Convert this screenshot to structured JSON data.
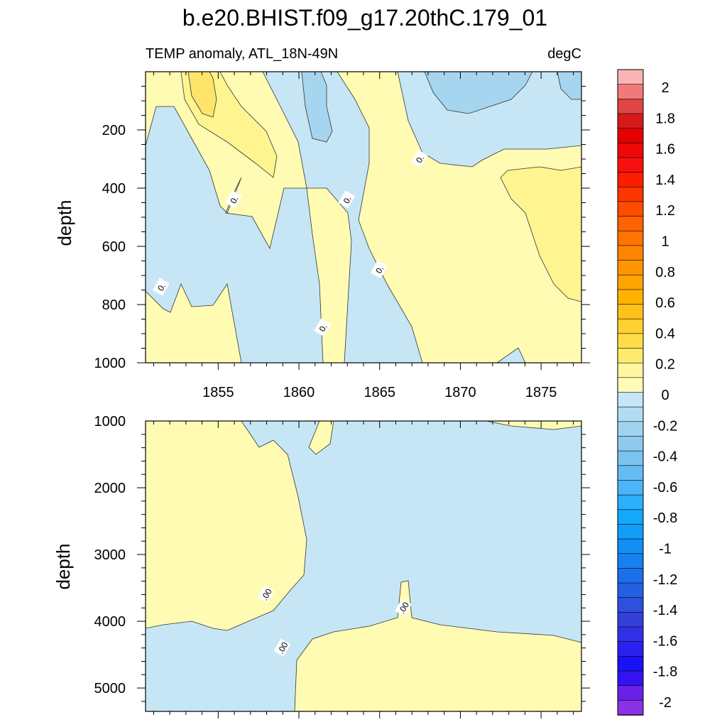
{
  "chart_data": {
    "type": "heatmap",
    "title": "b.e20.BHIST.f09_g17.20thC.179_01",
    "subtitle_left": "TEMP anomaly, ATL_18N-49N",
    "subtitle_right": "degC",
    "ylabel": "depth",
    "panels": [
      {
        "name": "upper",
        "ylim": [
          0,
          1000
        ],
        "yticks": [
          200,
          400,
          600,
          800,
          1000
        ],
        "xticks": [
          1855,
          1860,
          1865,
          1870,
          1875
        ],
        "xlim": [
          1850.5,
          1877.5
        ],
        "contour_labels": [
          {
            "x": 1856.0,
            "y": 440,
            "text": "0."
          },
          {
            "x": 1863.0,
            "y": 440,
            "text": "0."
          },
          {
            "x": 1851.5,
            "y": 740,
            "text": "0."
          },
          {
            "x": 1861.5,
            "y": 880,
            "text": "0."
          },
          {
            "x": 1865.0,
            "y": 680,
            "text": "0."
          },
          {
            "x": 1867.5,
            "y": 300,
            "text": "0."
          }
        ]
      },
      {
        "name": "lower",
        "ylim": [
          1000,
          5350
        ],
        "yticks": [
          1000,
          2000,
          3000,
          4000,
          5000
        ],
        "contour_labels": [
          {
            "x": 1858.0,
            "y": 3600,
            "text": ".00"
          },
          {
            "x": 1866.5,
            "y": 3800,
            "text": ".00"
          },
          {
            "x": 1859.0,
            "y": 4400,
            "text": ".00"
          }
        ]
      }
    ],
    "colorbar": {
      "labels": [
        "2",
        "1.8",
        "1.6",
        "1.4",
        "1.2",
        "1",
        "0.8",
        "0.6",
        "0.4",
        "0.2",
        "0",
        "-0.2",
        "-0.4",
        "-0.6",
        "-0.8",
        "-1",
        "-1.2",
        "-1.4",
        "-1.6",
        "-1.8",
        "-2"
      ],
      "colors": [
        "#fbb4b4",
        "#f07a7a",
        "#e04545",
        "#d61a1a",
        "#e40000",
        "#ee0808",
        "#f81010",
        "#ff1d00",
        "#ff3500",
        "#ff4c00",
        "#ff6200",
        "#ff7400",
        "#ff8500",
        "#ff9600",
        "#ffa400",
        "#ffb300",
        "#ffc21a",
        "#ffd030",
        "#fedd48",
        "#feeb6e",
        "#fff5a0",
        "#fffbb8",
        "#c6e5f6",
        "#b2dcf2",
        "#a0d3ef",
        "#8dcaee",
        "#79c3f0",
        "#63bcf3",
        "#4cb4f8",
        "#2cb0fb",
        "#14a8fb",
        "#109ef7",
        "#1090f3",
        "#1581ef",
        "#1b70ea",
        "#2460e4",
        "#2d50de",
        "#3440da",
        "#3430e6",
        "#2a20f0",
        "#1a12f6",
        "#3412f2",
        "#6b20e8",
        "#8a32e6"
      ]
    },
    "colors": {
      "positive_fill": "#fffbb3",
      "positive_mid": "#fff590",
      "positive_strong": "#fee46a",
      "positive_peak": "#fdd94a",
      "negative_fill": "#c6e6f5",
      "negative_mid": "#a6d5ef",
      "negative_strong": "#8dcbec"
    }
  }
}
